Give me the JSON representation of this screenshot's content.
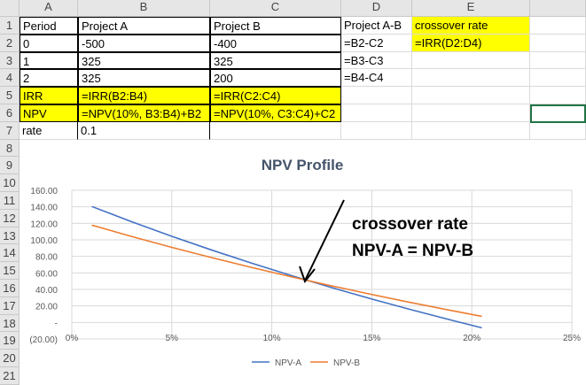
{
  "columns": [
    "A",
    "B",
    "C",
    "D",
    "E"
  ],
  "rows": [
    "1",
    "2",
    "3",
    "4",
    "5",
    "6",
    "7",
    "8",
    "9",
    "10",
    "11",
    "12",
    "13",
    "14",
    "15",
    "16",
    "17",
    "18",
    "19",
    "20",
    "21"
  ],
  "cells": {
    "A1": "Period",
    "B1": "Project A",
    "C1": "Project B",
    "D1": "Project A-B",
    "E1": "crossover rate",
    "A2": " 0",
    "B2": "-500",
    "C2": "-400",
    "D2": "=B2-C2",
    "E2": "=IRR(D2:D4)",
    "A3": "1",
    "B3": "325",
    "C3": "325",
    "D3": "=B3-C3",
    "A4": "2",
    "B4": "325",
    "C4": "200",
    "D4": "=B4-C4",
    "A5": "IRR",
    "B5": "=IRR(B2:B4)",
    "C5": "=IRR(C2:C4)",
    "A6": "NPV",
    "B6": "=NPV(10%, B3:B4)+B2",
    "C6": "=NPV(10%, C3:C4)+C2",
    "A7": "rate",
    "B7": "0.1"
  },
  "colors": {
    "highlight": "#ffff00",
    "npv_a": "#4472c4",
    "npv_b": "#ed7d31",
    "selection": "#217346"
  },
  "chart_data": {
    "type": "line",
    "title": "NPV Profile",
    "x": [
      0.01,
      0.03,
      0.05,
      0.07,
      0.09,
      0.11,
      0.13,
      0.15,
      0.17,
      0.19,
      0.205
    ],
    "series": [
      {
        "name": "NPV-A",
        "values": [
          140.38,
          121.88,
          104.31,
          87.61,
          71.71,
          56.57,
          42.13,
          28.36,
          15.19,
          2.61,
          -6.5
        ]
      },
      {
        "name": "NPV-B",
        "values": [
          117.84,
          104.05,
          90.93,
          78.43,
          66.51,
          55.11,
          44.24,
          33.84,
          23.88,
          14.34,
          7.4
        ]
      }
    ],
    "xlim": [
      0,
      0.25
    ],
    "ylim": [
      -20,
      160
    ],
    "x_ticks": [
      "0%",
      "5%",
      "10%",
      "15%",
      "20%",
      "25%"
    ],
    "y_ticks": [
      "(20.00)",
      "-",
      "20.00",
      "40.00",
      "60.00",
      "80.00",
      "100.00",
      "120.00",
      "140.00",
      "160.00"
    ],
    "annotation": {
      "line1": "crossover rate",
      "line2": "NPV-A = NPV-B"
    },
    "legend": "bottom"
  }
}
